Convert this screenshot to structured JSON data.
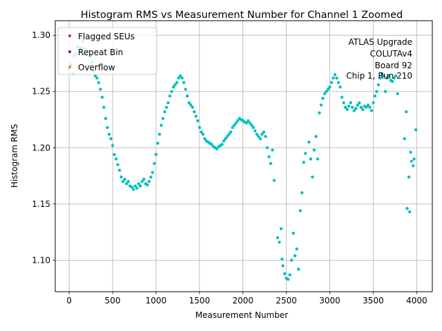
{
  "chart_data": {
    "type": "scatter",
    "title": "Histogram RMS vs Measurement Number for Channel 1 Zoomed",
    "xlabel": "Measurement Number",
    "ylabel": "Histogram RMS",
    "xlim": [
      -160,
      4180
    ],
    "ylim": [
      1.072,
      1.313
    ],
    "x_ticks": [
      0,
      500,
      1000,
      1500,
      2000,
      2500,
      3000,
      3500,
      4000
    ],
    "y_ticks": [
      1.1,
      1.15,
      1.2,
      1.25,
      1.3
    ],
    "x_tick_labels": [
      "0",
      "500",
      "1000",
      "1500",
      "2000",
      "2500",
      "3000",
      "3500",
      "4000"
    ],
    "y_tick_labels": [
      "1.10",
      "1.15",
      "1.20",
      "1.25",
      "1.30"
    ],
    "grid": true,
    "legend_position": "upper-left",
    "legend": [
      {
        "label": "Flagged SEUs",
        "color": "#d62728"
      },
      {
        "label": "Repeat Bin",
        "color": "#800080"
      },
      {
        "label": "Overflow",
        "color": "#ff7f0e"
      }
    ],
    "annotation": [
      "ATLAS Upgrade",
      "COLUTAv4",
      "Board 92",
      "Chip 1, Run 210"
    ],
    "marker_color": "#00bfbf",
    "marker_size": 3,
    "series": [
      {
        "color": "#00bfbf",
        "points": [
          [
            0,
            1.27
          ],
          [
            20,
            1.274
          ],
          [
            40,
            1.266
          ],
          [
            60,
            1.282
          ],
          [
            80,
            1.284
          ],
          [
            100,
            1.29
          ],
          [
            120,
            1.286
          ],
          [
            140,
            1.289
          ],
          [
            160,
            1.295
          ],
          [
            180,
            1.288
          ],
          [
            200,
            1.283
          ],
          [
            220,
            1.286
          ],
          [
            240,
            1.282
          ],
          [
            260,
            1.276
          ],
          [
            280,
            1.268
          ],
          [
            300,
            1.264
          ],
          [
            320,
            1.262
          ],
          [
            340,
            1.258
          ],
          [
            360,
            1.252
          ],
          [
            380,
            1.245
          ],
          [
            400,
            1.236
          ],
          [
            420,
            1.226
          ],
          [
            440,
            1.218
          ],
          [
            460,
            1.212
          ],
          [
            480,
            1.208
          ],
          [
            500,
            1.202
          ],
          [
            520,
            1.194
          ],
          [
            540,
            1.19
          ],
          [
            560,
            1.185
          ],
          [
            580,
            1.18
          ],
          [
            600,
            1.174
          ],
          [
            620,
            1.17
          ],
          [
            640,
            1.172
          ],
          [
            660,
            1.168
          ],
          [
            680,
            1.17
          ],
          [
            700,
            1.166
          ],
          [
            720,
            1.165
          ],
          [
            740,
            1.163
          ],
          [
            760,
            1.166
          ],
          [
            780,
            1.164
          ],
          [
            800,
            1.168
          ],
          [
            820,
            1.166
          ],
          [
            840,
            1.17
          ],
          [
            860,
            1.172
          ],
          [
            880,
            1.168
          ],
          [
            900,
            1.167
          ],
          [
            920,
            1.17
          ],
          [
            940,
            1.174
          ],
          [
            960,
            1.178
          ],
          [
            980,
            1.186
          ],
          [
            1000,
            1.194
          ],
          [
            1020,
            1.204
          ],
          [
            1040,
            1.212
          ],
          [
            1060,
            1.22
          ],
          [
            1080,
            1.226
          ],
          [
            1100,
            1.232
          ],
          [
            1120,
            1.236
          ],
          [
            1140,
            1.24
          ],
          [
            1160,
            1.246
          ],
          [
            1180,
            1.25
          ],
          [
            1200,
            1.254
          ],
          [
            1220,
            1.256
          ],
          [
            1240,
            1.258
          ],
          [
            1260,
            1.262
          ],
          [
            1280,
            1.264
          ],
          [
            1300,
            1.262
          ],
          [
            1320,
            1.258
          ],
          [
            1340,
            1.252
          ],
          [
            1360,
            1.246
          ],
          [
            1380,
            1.24
          ],
          [
            1400,
            1.238
          ],
          [
            1420,
            1.236
          ],
          [
            1440,
            1.232
          ],
          [
            1460,
            1.228
          ],
          [
            1480,
            1.224
          ],
          [
            1500,
            1.218
          ],
          [
            1520,
            1.214
          ],
          [
            1540,
            1.212
          ],
          [
            1560,
            1.208
          ],
          [
            1580,
            1.206
          ],
          [
            1600,
            1.205
          ],
          [
            1620,
            1.204
          ],
          [
            1640,
            1.203
          ],
          [
            1660,
            1.201
          ],
          [
            1680,
            1.2
          ],
          [
            1700,
            1.199
          ],
          [
            1720,
            1.201
          ],
          [
            1740,
            1.202
          ],
          [
            1760,
            1.203
          ],
          [
            1780,
            1.206
          ],
          [
            1800,
            1.208
          ],
          [
            1820,
            1.21
          ],
          [
            1840,
            1.212
          ],
          [
            1860,
            1.214
          ],
          [
            1880,
            1.218
          ],
          [
            1900,
            1.22
          ],
          [
            1920,
            1.222
          ],
          [
            1940,
            1.224
          ],
          [
            1960,
            1.226
          ],
          [
            1980,
            1.225
          ],
          [
            2000,
            1.224
          ],
          [
            2020,
            1.223
          ],
          [
            2040,
            1.222
          ],
          [
            2060,
            1.224
          ],
          [
            2080,
            1.222
          ],
          [
            2100,
            1.22
          ],
          [
            2120,
            1.218
          ],
          [
            2140,
            1.215
          ],
          [
            2160,
            1.212
          ],
          [
            2180,
            1.21
          ],
          [
            2200,
            1.208
          ],
          [
            2220,
            1.212
          ],
          [
            2240,
            1.214
          ],
          [
            2260,
            1.21
          ],
          [
            2280,
            1.2
          ],
          [
            2300,
            1.192
          ],
          [
            2320,
            1.186
          ],
          [
            2340,
            1.198
          ],
          [
            2360,
            1.171
          ],
          [
            2400,
            1.12
          ],
          [
            2420,
            1.116
          ],
          [
            2440,
            1.128
          ],
          [
            2450,
            1.101
          ],
          [
            2460,
            1.095
          ],
          [
            2480,
            1.088
          ],
          [
            2500,
            1.084
          ],
          [
            2520,
            1.083
          ],
          [
            2540,
            1.087
          ],
          [
            2560,
            1.1
          ],
          [
            2580,
            1.124
          ],
          [
            2600,
            1.104
          ],
          [
            2620,
            1.11
          ],
          [
            2640,
            1.092
          ],
          [
            2660,
            1.144
          ],
          [
            2680,
            1.16
          ],
          [
            2700,
            1.187
          ],
          [
            2720,
            1.195
          ],
          [
            2760,
            1.205
          ],
          [
            2780,
            1.19
          ],
          [
            2800,
            1.174
          ],
          [
            2820,
            1.198
          ],
          [
            2840,
            1.21
          ],
          [
            2860,
            1.19
          ],
          [
            2880,
            1.231
          ],
          [
            2900,
            1.238
          ],
          [
            2920,
            1.244
          ],
          [
            2940,
            1.248
          ],
          [
            2960,
            1.25
          ],
          [
            2980,
            1.252
          ],
          [
            3000,
            1.254
          ],
          [
            3020,
            1.258
          ],
          [
            3040,
            1.262
          ],
          [
            3060,
            1.265
          ],
          [
            3080,
            1.262
          ],
          [
            3100,
            1.258
          ],
          [
            3120,
            1.254
          ],
          [
            3140,
            1.245
          ],
          [
            3160,
            1.24
          ],
          [
            3180,
            1.236
          ],
          [
            3200,
            1.234
          ],
          [
            3220,
            1.237
          ],
          [
            3240,
            1.24
          ],
          [
            3260,
            1.236
          ],
          [
            3280,
            1.233
          ],
          [
            3300,
            1.235
          ],
          [
            3320,
            1.238
          ],
          [
            3340,
            1.24
          ],
          [
            3360,
            1.236
          ],
          [
            3380,
            1.234
          ],
          [
            3400,
            1.237
          ],
          [
            3420,
            1.236
          ],
          [
            3440,
            1.238
          ],
          [
            3460,
            1.236
          ],
          [
            3480,
            1.233
          ],
          [
            3500,
            1.24
          ],
          [
            3520,
            1.246
          ],
          [
            3540,
            1.25
          ],
          [
            3560,
            1.256
          ],
          [
            3580,
            1.262
          ],
          [
            3600,
            1.266
          ],
          [
            3620,
            1.264
          ],
          [
            3640,
            1.25
          ],
          [
            3660,
            1.262
          ],
          [
            3680,
            1.264
          ],
          [
            3700,
            1.26
          ],
          [
            3720,
            1.259
          ],
          [
            3740,
            1.262
          ],
          [
            3760,
            1.264
          ],
          [
            3780,
            1.248
          ],
          [
            3860,
            1.208
          ],
          [
            3880,
            1.232
          ],
          [
            3890,
            1.146
          ],
          [
            3910,
            1.174
          ],
          [
            3920,
            1.143
          ],
          [
            3930,
            1.196
          ],
          [
            3940,
            1.188
          ],
          [
            3960,
            1.184
          ],
          [
            3970,
            1.19
          ],
          [
            3990,
            1.216
          ]
        ]
      }
    ]
  }
}
